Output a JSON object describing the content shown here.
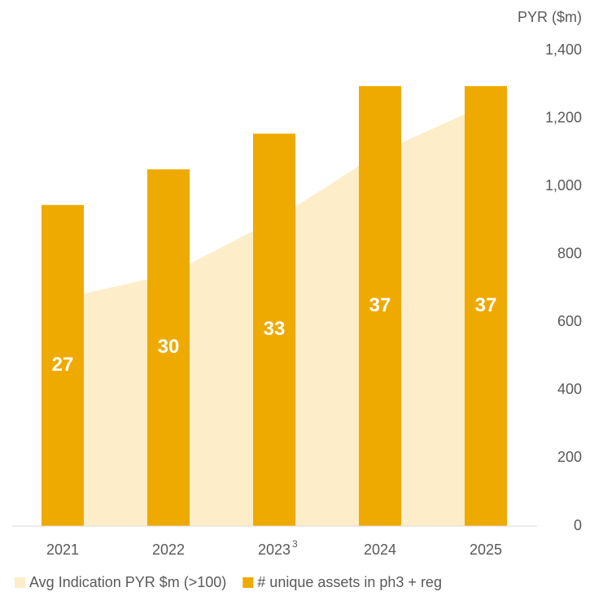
{
  "chart_data": {
    "type": "bar",
    "categories": [
      "2021",
      "2022",
      "2023",
      "2024",
      "2025"
    ],
    "category_superscripts": [
      "3"
    ],
    "series": [
      {
        "name": "Avg Indication PYR $m (>100)",
        "type": "area",
        "axis": "y2",
        "color": "#fdedc9",
        "values": [
          670,
          740,
          900,
          1100,
          1240
        ]
      },
      {
        "name": "# unique assets in ph3 + reg",
        "type": "bar",
        "axis": "y",
        "color": "#eeaa00",
        "values": [
          27,
          30,
          33,
          37,
          37
        ]
      }
    ],
    "ylim": [
      0,
      40
    ],
    "y2label": "PYR ($m)",
    "y2lim": [
      0,
      1400
    ],
    "y2ticks": [
      0,
      200,
      400,
      600,
      800,
      {
        "value": 1000,
        "label": "1,000"
      },
      {
        "value": 1200,
        "label": "1,200"
      },
      {
        "value": 1400,
        "label": "1,400"
      }
    ],
    "legend": "bottom"
  }
}
